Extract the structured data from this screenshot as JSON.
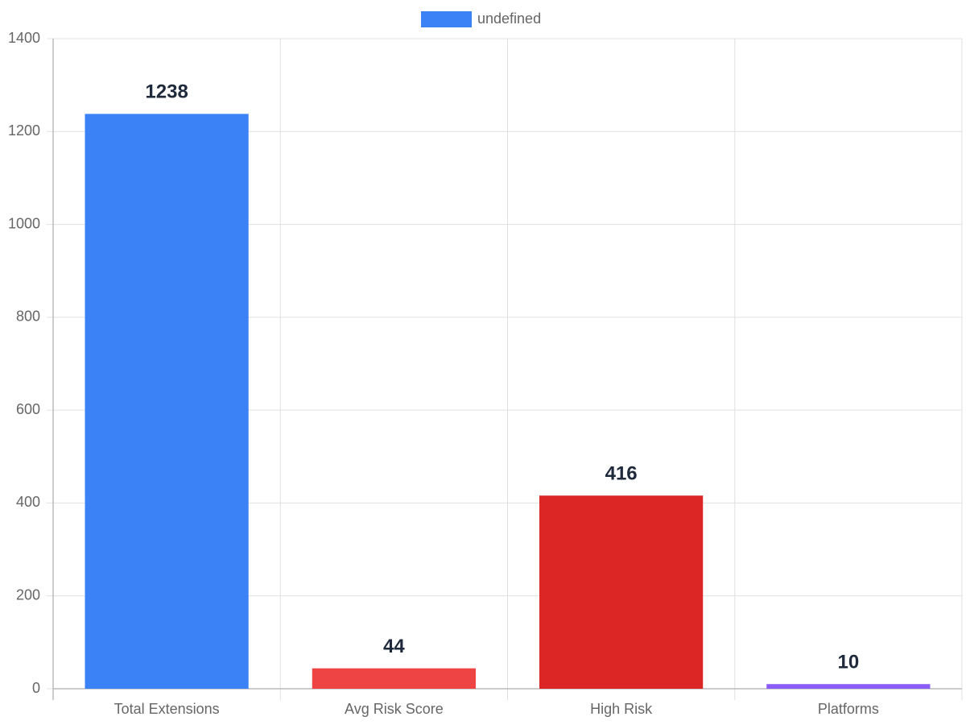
{
  "chart_data": {
    "type": "bar",
    "categories": [
      "Total Extensions",
      "Avg Risk Score",
      "High Risk",
      "Platforms"
    ],
    "series": [
      {
        "name": "undefined",
        "colors": [
          "#3b82f6",
          "#ef4444",
          "#dc2626",
          "#8b5cf6"
        ],
        "values": [
          1238,
          44,
          416,
          10
        ]
      }
    ],
    "ylim": [
      0,
      1400
    ],
    "yticks": [
      0,
      200,
      400,
      600,
      800,
      1000,
      1200,
      1400
    ],
    "grid": true
  }
}
